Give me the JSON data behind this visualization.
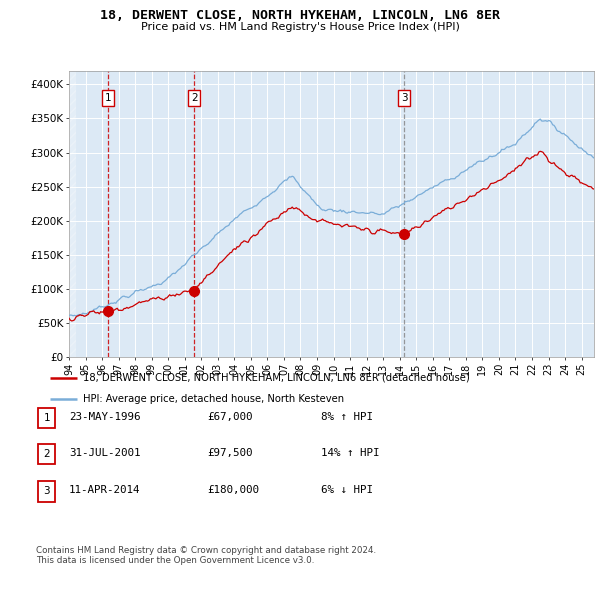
{
  "title": "18, DERWENT CLOSE, NORTH HYKEHAM, LINCOLN, LN6 8ER",
  "subtitle": "Price paid vs. HM Land Registry's House Price Index (HPI)",
  "legend_line1": "18, DERWENT CLOSE, NORTH HYKEHAM, LINCOLN, LN6 8ER (detached house)",
  "legend_line2": "HPI: Average price, detached house, North Kesteven",
  "footer": "Contains HM Land Registry data © Crown copyright and database right 2024.\nThis data is licensed under the Open Government Licence v3.0.",
  "sales": [
    {
      "label": "1",
      "date": "23-MAY-1996",
      "price": 67000,
      "hpi_pct": "8% ↑ HPI"
    },
    {
      "label": "2",
      "date": "31-JUL-2001",
      "price": 97500,
      "hpi_pct": "14% ↑ HPI"
    },
    {
      "label": "3",
      "date": "11-APR-2014",
      "price": 180000,
      "hpi_pct": "6% ↓ HPI"
    }
  ],
  "sale_dates_decimal": [
    1996.38,
    2001.58,
    2014.27
  ],
  "sale_prices": [
    67000,
    97500,
    180000
  ],
  "vline_colors_red": [
    "#cc0000",
    "#cc0000"
  ],
  "vline_color_gray": "#888888",
  "bg_color": "#dce9f5",
  "hpi_line_color": "#7aadd8",
  "price_line_color": "#cc0000",
  "ylim": [
    0,
    420000
  ],
  "xlim_start": 1994.0,
  "xlim_end": 2025.75,
  "ylabel_ticks": [
    0,
    50000,
    100000,
    150000,
    200000,
    250000,
    300000,
    350000,
    400000
  ],
  "ytick_labels": [
    "£0",
    "£50K",
    "£100K",
    "£150K",
    "£200K",
    "£250K",
    "£300K",
    "£350K",
    "£400K"
  ],
  "xtick_years": [
    1994,
    1995,
    1996,
    1997,
    1998,
    1999,
    2000,
    2001,
    2002,
    2003,
    2004,
    2005,
    2006,
    2007,
    2008,
    2009,
    2010,
    2011,
    2012,
    2013,
    2014,
    2015,
    2016,
    2017,
    2018,
    2019,
    2020,
    2021,
    2022,
    2023,
    2024,
    2025
  ]
}
